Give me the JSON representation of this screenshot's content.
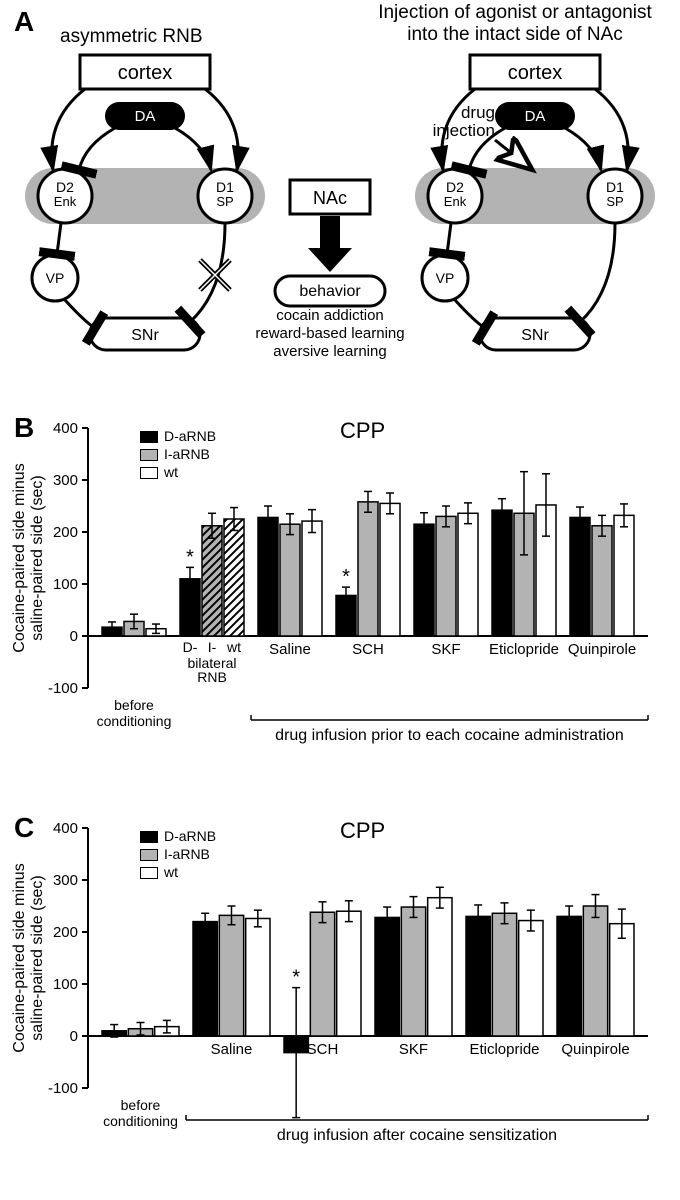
{
  "panelA": {
    "label": "A",
    "left_title": "asymmetric RNB",
    "right_title": "Injection of agonist or antagonist\ninto the intact side of NAc",
    "center": {
      "nac": "NAc",
      "behavior": "behavior",
      "lines": [
        "cocain addiction",
        "reward-based learning",
        "aversive learning"
      ]
    },
    "nodes": {
      "cortex": "cortex",
      "da": "DA",
      "d2": "D2\nEnk",
      "d1": "D1\nSP",
      "vp": "VP",
      "snr": "SNr",
      "drug_injection": "drug\ninjection"
    },
    "colors": {
      "stroke": "#000000",
      "fill_white": "#ffffff",
      "fill_black": "#000000",
      "bg_bar": "#b3b3b3"
    }
  },
  "chartCommon": {
    "ylabel": "Cocaine-paired side minus\nsaline-paired side (sec)",
    "ylim": [
      -100,
      400
    ],
    "ytick_step": 100,
    "bar_stroke": "#000000",
    "series_colors": {
      "D-aRNB": "#000000",
      "I-aRNB": "#b3b3b3",
      "wt": "#ffffff"
    },
    "hatch_colors": {
      "D-": "#000000",
      "I-": "#b3b3b3",
      "wt": "#ffffff"
    },
    "legend": [
      "D-aRNB",
      "I-aRNB",
      "wt"
    ]
  },
  "panelB": {
    "label": "B",
    "title": "CPP",
    "bottom_annotation_left": "before\nconditioning",
    "xlabels_mid": [
      "D-",
      "I-",
      "wt"
    ],
    "mid_sublabel": "bilateral\nRNB",
    "conditions": [
      "Saline",
      "SCH",
      "SKF",
      "Eticlopride",
      "Quinpirole"
    ],
    "bottom_span_label": "drug infusion prior to each cocaine administration",
    "groups": [
      {
        "name": "before",
        "bars": [
          {
            "series": "D-aRNB",
            "val": 17,
            "err": 10
          },
          {
            "series": "I-aRNB",
            "val": 28,
            "err": 14
          },
          {
            "series": "wt",
            "val": 14,
            "err": 9
          }
        ]
      },
      {
        "name": "bilateral",
        "hatched": true,
        "bars": [
          {
            "series": "D-",
            "val": 110,
            "err": 22,
            "star": true
          },
          {
            "series": "I-",
            "val": 212,
            "err": 24
          },
          {
            "series": "wt",
            "val": 225,
            "err": 22
          }
        ]
      },
      {
        "name": "Saline",
        "bars": [
          {
            "series": "D-aRNB",
            "val": 228,
            "err": 22
          },
          {
            "series": "I-aRNB",
            "val": 215,
            "err": 20
          },
          {
            "series": "wt",
            "val": 221,
            "err": 22
          }
        ]
      },
      {
        "name": "SCH",
        "bars": [
          {
            "series": "D-aRNB",
            "val": 78,
            "err": 16,
            "star": true
          },
          {
            "series": "I-aRNB",
            "val": 258,
            "err": 20
          },
          {
            "series": "wt",
            "val": 255,
            "err": 20
          }
        ]
      },
      {
        "name": "SKF",
        "bars": [
          {
            "series": "D-aRNB",
            "val": 215,
            "err": 22
          },
          {
            "series": "I-aRNB",
            "val": 230,
            "err": 20
          },
          {
            "series": "wt",
            "val": 236,
            "err": 20
          }
        ]
      },
      {
        "name": "Eticlopride",
        "bars": [
          {
            "series": "D-aRNB",
            "val": 242,
            "err": 22
          },
          {
            "series": "I-aRNB",
            "val": 236,
            "err": 80
          },
          {
            "series": "wt",
            "val": 252,
            "err": 60
          }
        ]
      },
      {
        "name": "Quinpirole",
        "bars": [
          {
            "series": "D-aRNB",
            "val": 228,
            "err": 20
          },
          {
            "series": "I-aRNB",
            "val": 212,
            "err": 20
          },
          {
            "series": "wt",
            "val": 232,
            "err": 22
          }
        ]
      }
    ]
  },
  "panelC": {
    "label": "C",
    "title": "CPP",
    "bottom_annotation_left": "before\nconditioning",
    "conditions": [
      "Saline",
      "SCH",
      "SKF",
      "Eticlopride",
      "Quinpirole"
    ],
    "bottom_span_label": "drug infusion after cocaine sensitization",
    "groups": [
      {
        "name": "before",
        "bars": [
          {
            "series": "D-aRNB",
            "val": 10,
            "err": 12
          },
          {
            "series": "I-aRNB",
            "val": 14,
            "err": 12
          },
          {
            "series": "wt",
            "val": 18,
            "err": 12
          }
        ]
      },
      {
        "name": "Saline",
        "bars": [
          {
            "series": "D-aRNB",
            "val": 220,
            "err": 16
          },
          {
            "series": "I-aRNB",
            "val": 232,
            "err": 18
          },
          {
            "series": "wt",
            "val": 226,
            "err": 16
          }
        ]
      },
      {
        "name": "SCH",
        "bars": [
          {
            "series": "D-aRNB",
            "val": -32,
            "err": 125,
            "star": true
          },
          {
            "series": "I-aRNB",
            "val": 238,
            "err": 20
          },
          {
            "series": "wt",
            "val": 240,
            "err": 20
          }
        ]
      },
      {
        "name": "SKF",
        "bars": [
          {
            "series": "D-aRNB",
            "val": 228,
            "err": 20
          },
          {
            "series": "I-aRNB",
            "val": 248,
            "err": 20
          },
          {
            "series": "wt",
            "val": 266,
            "err": 20
          }
        ]
      },
      {
        "name": "Eticlopride",
        "bars": [
          {
            "series": "D-aRNB",
            "val": 230,
            "err": 22
          },
          {
            "series": "I-aRNB",
            "val": 236,
            "err": 20
          },
          {
            "series": "wt",
            "val": 222,
            "err": 20
          }
        ]
      },
      {
        "name": "Quinpirole",
        "bars": [
          {
            "series": "D-aRNB",
            "val": 230,
            "err": 20
          },
          {
            "series": "I-aRNB",
            "val": 250,
            "err": 22
          },
          {
            "series": "wt",
            "val": 216,
            "err": 28
          }
        ]
      }
    ]
  }
}
